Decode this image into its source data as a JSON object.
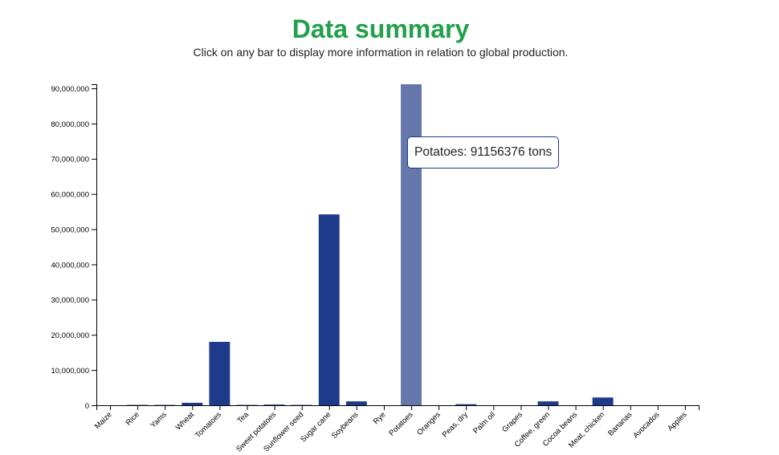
{
  "header": {
    "title": "Data summary",
    "subtitle": "Click on any bar to display more information in relation to global production."
  },
  "tooltip": {
    "text": "Potatoes: 91156376 tons"
  },
  "colors": {
    "bar": "#1e3a8a",
    "bar_highlight": "#6577ab",
    "title": "#22a04b"
  },
  "chart_data": {
    "type": "bar",
    "title": "",
    "xlabel": "",
    "ylabel": "",
    "ylim": [
      0,
      91156376
    ],
    "yticks": [
      0,
      10000000,
      20000000,
      30000000,
      40000000,
      50000000,
      60000000,
      70000000,
      80000000,
      90000000
    ],
    "ytick_labels": [
      "0",
      "10,000,000",
      "20,000,000",
      "30,000,000",
      "40,000,000",
      "50,000,000",
      "60,000,000",
      "70,000,000",
      "80,000,000",
      "90,000,000"
    ],
    "categories": [
      "Maize",
      "Rice",
      "Yams",
      "Wheat",
      "Tomatoes",
      "Tea",
      "Sweet potatoes",
      "Sunflower seed",
      "Sugar cane",
      "Soybeans",
      "Rye",
      "Potatoes",
      "Oranges",
      "Peas, dry",
      "Palm oil",
      "Grapes",
      "Coffee, green",
      "Cocoa beans",
      "Meat, chicken",
      "Bananas",
      "Avocados",
      "Apples"
    ],
    "values": [
      0,
      100000,
      100000,
      700000,
      18000000,
      100000,
      200000,
      100000,
      54200000,
      1100000,
      0,
      91156376,
      0,
      300000,
      0,
      0,
      1100000,
      0,
      2200000,
      0,
      0,
      0
    ],
    "highlighted": "Potatoes",
    "grid": false
  }
}
